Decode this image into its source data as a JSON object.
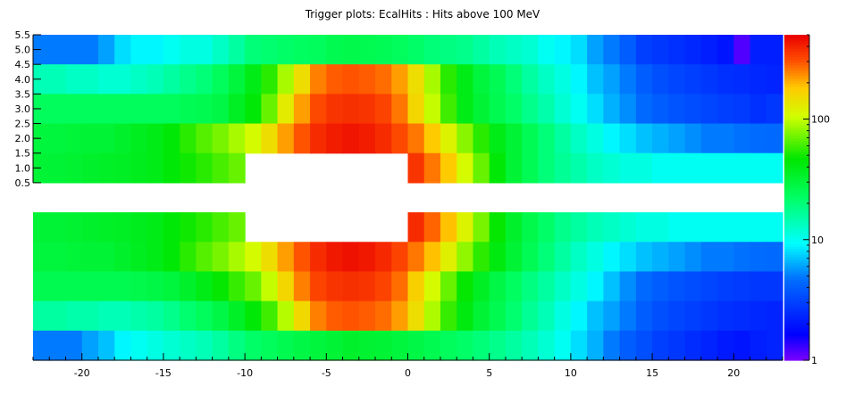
{
  "chart_data": {
    "type": "heatmap",
    "title": "Trigger plots: EcalHits : Hits above 100 MeV",
    "xlabel": "",
    "ylabel": "",
    "x_range": [
      -23,
      23
    ],
    "x_ticks": [
      -20,
      -15,
      -10,
      -5,
      0,
      5,
      10,
      15,
      20
    ],
    "y_tick_labels": [
      "5.5",
      "5.0",
      "4.5",
      "4.0",
      "3.5",
      "3.0",
      "2.5",
      "2.0",
      "1.5",
      "1.0",
      "0.5"
    ],
    "y_tick_values": [
      5.5,
      5.0,
      4.5,
      4.0,
      3.5,
      3.0,
      2.5,
      2.0,
      1.5,
      1.0,
      0.5
    ],
    "y_range": [
      -5.5,
      5.5
    ],
    "colorbar": {
      "scale": "log",
      "range": [
        1,
        500
      ],
      "tick_labels": [
        "100",
        "10",
        "1"
      ],
      "tick_values": [
        100,
        10,
        1
      ]
    },
    "grid": false,
    "x_bins": [
      -23,
      -22,
      -21,
      -20,
      -19,
      -18,
      -17,
      -16,
      -15,
      -14,
      -13,
      -12,
      -11,
      -10,
      -9,
      -8,
      -7,
      -6,
      -5,
      -4,
      -3,
      -2,
      -1,
      0,
      1,
      2,
      3,
      4,
      5,
      6,
      7,
      8,
      9,
      10,
      11,
      12,
      13,
      14,
      15,
      16,
      17,
      18,
      19,
      20,
      21,
      22
    ],
    "bin_width": 1,
    "rows": [
      {
        "y": 5,
        "values": [
          5,
          5,
          5,
          5,
          6,
          8,
          9,
          9,
          10,
          11,
          11,
          13,
          16,
          20,
          21,
          22,
          23,
          24,
          26,
          27,
          26,
          25,
          24,
          22,
          20,
          19,
          18,
          16,
          14,
          13,
          12,
          10,
          9,
          8,
          6,
          5,
          4,
          3,
          2.8,
          2.6,
          2.4,
          2.2,
          2.0,
          1.2,
          2.2,
          2.2
        ]
      },
      {
        "y": 4,
        "values": [
          14,
          14,
          13,
          13,
          12,
          12,
          13,
          14,
          16,
          18,
          20,
          24,
          30,
          40,
          55,
          90,
          150,
          250,
          290,
          300,
          290,
          270,
          220,
          150,
          90,
          55,
          40,
          30,
          25,
          20,
          16,
          13,
          11,
          9,
          7,
          6,
          5,
          4,
          3.5,
          3.2,
          3,
          2.8,
          2.6,
          2.5,
          2.4,
          2.3
        ]
      },
      {
        "y": 3,
        "values": [
          24,
          24,
          24,
          24,
          24,
          24,
          24,
          24,
          24,
          25,
          26,
          28,
          36,
          45,
          70,
          130,
          220,
          320,
          360,
          370,
          360,
          330,
          260,
          160,
          100,
          60,
          40,
          32,
          26,
          22,
          18,
          15,
          12,
          10,
          8,
          6.5,
          5.5,
          4.5,
          4,
          3.7,
          3.4,
          3.2,
          3,
          2.9,
          2.6,
          2.8
        ]
      },
      {
        "y": 2,
        "values": [
          30,
          30,
          31,
          32,
          32,
          34,
          37,
          40,
          45,
          55,
          65,
          75,
          90,
          110,
          150,
          220,
          300,
          380,
          420,
          440,
          420,
          380,
          320,
          260,
          180,
          120,
          80,
          55,
          40,
          32,
          25,
          20,
          16,
          13,
          11,
          9,
          8,
          7,
          6.5,
          6,
          5.5,
          5,
          5,
          4.8,
          4.6,
          4.5
        ]
      },
      {
        "y": 1,
        "values": [
          32,
          32,
          33,
          34,
          35,
          36,
          38,
          40,
          45,
          50,
          55,
          62,
          70,
          null,
          null,
          null,
          null,
          null,
          null,
          null,
          null,
          null,
          null,
          360,
          260,
          180,
          110,
          70,
          45,
          32,
          25,
          20,
          17,
          15,
          13,
          12,
          11,
          11,
          10,
          10,
          10,
          10,
          10,
          10,
          10,
          10
        ]
      },
      {
        "y": -1,
        "values": [
          32,
          32,
          33,
          34,
          35,
          36,
          38,
          40,
          45,
          50,
          55,
          62,
          70,
          null,
          null,
          null,
          null,
          null,
          null,
          null,
          null,
          null,
          null,
          380,
          280,
          190,
          120,
          75,
          48,
          34,
          27,
          22,
          18,
          16,
          14,
          13,
          12,
          11,
          11,
          10,
          10,
          10,
          10,
          10,
          10,
          10
        ]
      },
      {
        "y": -2,
        "values": [
          30,
          30,
          31,
          32,
          32,
          34,
          37,
          40,
          45,
          55,
          65,
          75,
          90,
          110,
          150,
          220,
          300,
          380,
          430,
          450,
          430,
          390,
          330,
          260,
          190,
          125,
          82,
          56,
          42,
          32,
          25,
          20,
          16,
          13,
          11,
          9,
          8,
          7,
          6.5,
          6,
          5.5,
          5,
          5,
          4.8,
          4.6,
          4.5
        ]
      },
      {
        "y": -3,
        "values": [
          26,
          26,
          26,
          26,
          26,
          26,
          27,
          28,
          30,
          34,
          40,
          48,
          58,
          70,
          100,
          160,
          250,
          330,
          360,
          370,
          360,
          330,
          270,
          170,
          110,
          70,
          48,
          36,
          28,
          23,
          19,
          16,
          13,
          11,
          9,
          7,
          5.5,
          4.5,
          4,
          3.7,
          3.4,
          3.2,
          3,
          2.9,
          2.8,
          2.8
        ]
      },
      {
        "y": -4,
        "values": [
          16,
          16,
          15,
          15,
          14,
          14,
          15,
          16,
          18,
          21,
          24,
          28,
          35,
          45,
          60,
          95,
          155,
          250,
          290,
          300,
          290,
          270,
          220,
          150,
          92,
          58,
          42,
          32,
          26,
          21,
          17,
          14,
          11,
          9,
          7,
          6,
          5,
          4,
          3.5,
          3.2,
          3,
          2.8,
          2.6,
          2.5,
          2.4,
          2.3
        ]
      },
      {
        "y": -5,
        "values": [
          5,
          5,
          5,
          6,
          7,
          9,
          10,
          11,
          12,
          13,
          14,
          16,
          19,
          22,
          24,
          26,
          28,
          30,
          32,
          34,
          33,
          32,
          30,
          28,
          26,
          24,
          22,
          20,
          18,
          16,
          14,
          12,
          10,
          8,
          6.5,
          5,
          4,
          3.5,
          3,
          2.8,
          2.5,
          2.3,
          2.1,
          2.0,
          2.2,
          2.3
        ]
      }
    ]
  }
}
